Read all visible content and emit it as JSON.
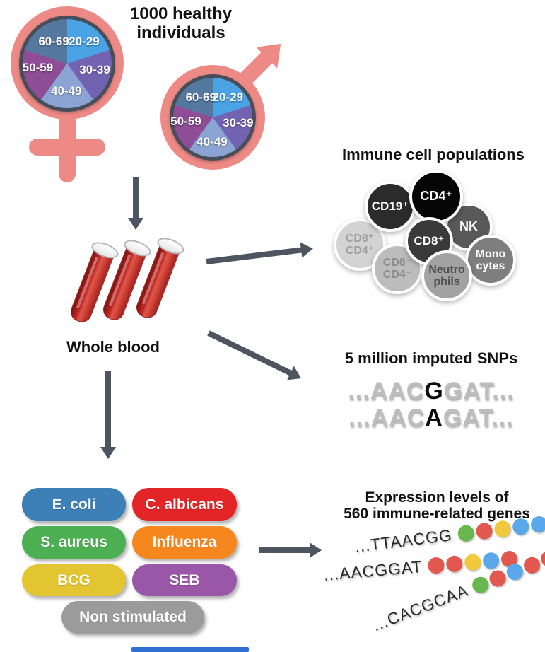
{
  "figure": {
    "cohort": {
      "title_line1": "1000 healthy",
      "title_line2": "individuals",
      "age_groups": {
        "g2029": "20-29",
        "g3039": "30-39",
        "g4049": "40-49",
        "g5059": "50-59",
        "g6069": "60-69"
      },
      "pie_colors": {
        "g2029": "#4aa3e5",
        "g3039": "#7263b2",
        "g4049": "#8ba4d3",
        "g5059": "#8e4d96",
        "g6069": "#54789f"
      },
      "symbol_color": "#ee8a86"
    },
    "whole_blood": {
      "label": "Whole blood"
    },
    "immune": {
      "title": "Immune cell populations",
      "cells": [
        {
          "id": "cd8pos-cd4pos",
          "line1": "CD8⁺",
          "line2": "CD4⁺",
          "bg": "#d3d3d3",
          "text_color": "#a0a0a0"
        },
        {
          "id": "cd19pos",
          "line1": "CD19⁺",
          "line2": "",
          "bg": "#2b2b2b",
          "text_color": "#ffffff"
        },
        {
          "id": "nk",
          "line1": "NK",
          "line2": "",
          "bg": "#595959",
          "text_color": "#ffffff"
        },
        {
          "id": "cd4pos",
          "line1": "CD4⁺",
          "line2": "",
          "bg": "#060606",
          "text_color": "#ffffff"
        },
        {
          "id": "cd8pos",
          "line1": "CD8⁺",
          "line2": "",
          "bg": "#3a3a3a",
          "text_color": "#ffffff"
        },
        {
          "id": "cd8neg-cd4neg",
          "line1": "CD8⁻",
          "line2": "CD4⁻",
          "bg": "#bcbcbc",
          "text_color": "#8c8c8c"
        },
        {
          "id": "monocytes",
          "line1": "Mono",
          "line2": "cytes",
          "bg": "#7e7e7e",
          "text_color": "#ffffff"
        },
        {
          "id": "neutrophils",
          "line1": "Neutro",
          "line2": "phils",
          "bg": "#a2a2a2",
          "text_color": "#4f4f4f"
        }
      ]
    },
    "snps": {
      "title": "5 million imputed SNPs",
      "seq1": {
        "pre": "...AAC",
        "variant": "G",
        "post": "GAT..."
      },
      "seq2": {
        "pre": "...AAC",
        "variant": "A",
        "post": "GAT..."
      }
    },
    "stimuli": {
      "items": [
        {
          "label": "E. coli",
          "color": "#3d80b8"
        },
        {
          "label": "C. albicans",
          "color": "#e32527"
        },
        {
          "label": "S. aureus",
          "color": "#4cb052"
        },
        {
          "label": "Influenza",
          "color": "#f6871f"
        },
        {
          "label": "BCG",
          "color": "#e3c431"
        },
        {
          "label": "SEB",
          "color": "#9a57a8"
        },
        {
          "label": "Non stimulated",
          "color": "#9b9b9b"
        }
      ]
    },
    "expression": {
      "title_line1": "Expression levels of",
      "title_line2": "560 immune-related genes",
      "dot_colors": {
        "green": "#66b84f",
        "red": "#e2574e",
        "yellow": "#f0c93d",
        "blue": "#58a8ea"
      },
      "genes": [
        {
          "seq": "...TTAACGG",
          "dots": [
            "green",
            "red",
            "yellow",
            "blue",
            "blue"
          ]
        },
        {
          "seq": "...AACGGAT",
          "dots": [
            "red",
            "red",
            "yellow",
            "blue",
            "red"
          ]
        },
        {
          "seq": "...CACGCAA",
          "dots": [
            "green",
            "red",
            "blue",
            "red",
            "red"
          ]
        }
      ]
    },
    "arrow_color": "#4d5560"
  }
}
